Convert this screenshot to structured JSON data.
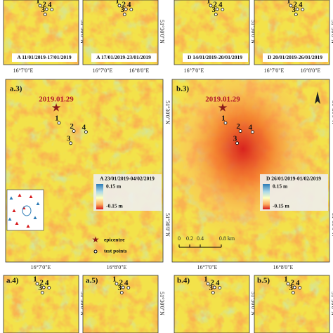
{
  "axis_labels": {
    "lon": [
      "16°7'0\"E",
      "16°8'0\"E"
    ],
    "lat": "51°30'0\"N"
  },
  "top_row": [
    "A 11/01/2019-17/01/2019",
    "A 17/01/2019-23/01/2019",
    "D 14/01/2019-20/01/2019",
    "D 20/01/2019-26/01/2019"
  ],
  "main_panels": [
    {
      "label": "a.3)",
      "event_date": "2019.01.29",
      "interferogram": "A 23/01/2019-04/02/2019"
    },
    {
      "label": "b.3)",
      "event_date": "2019.01.29",
      "interferogram": "D 26/01/2019-01/02/2019"
    }
  ],
  "legend": {
    "max": "0.15 m",
    "min": "-0.15 m",
    "epicentre": "epicentre",
    "test_points": "test points"
  },
  "points": [
    "1",
    "2",
    "3",
    "4"
  ],
  "scale_bar": [
    "0",
    "0.2",
    "0.4",
    "0.8 km"
  ],
  "bottom_row": [
    "a.4)",
    "a.5)",
    "b.4)",
    "b.5)"
  ]
}
